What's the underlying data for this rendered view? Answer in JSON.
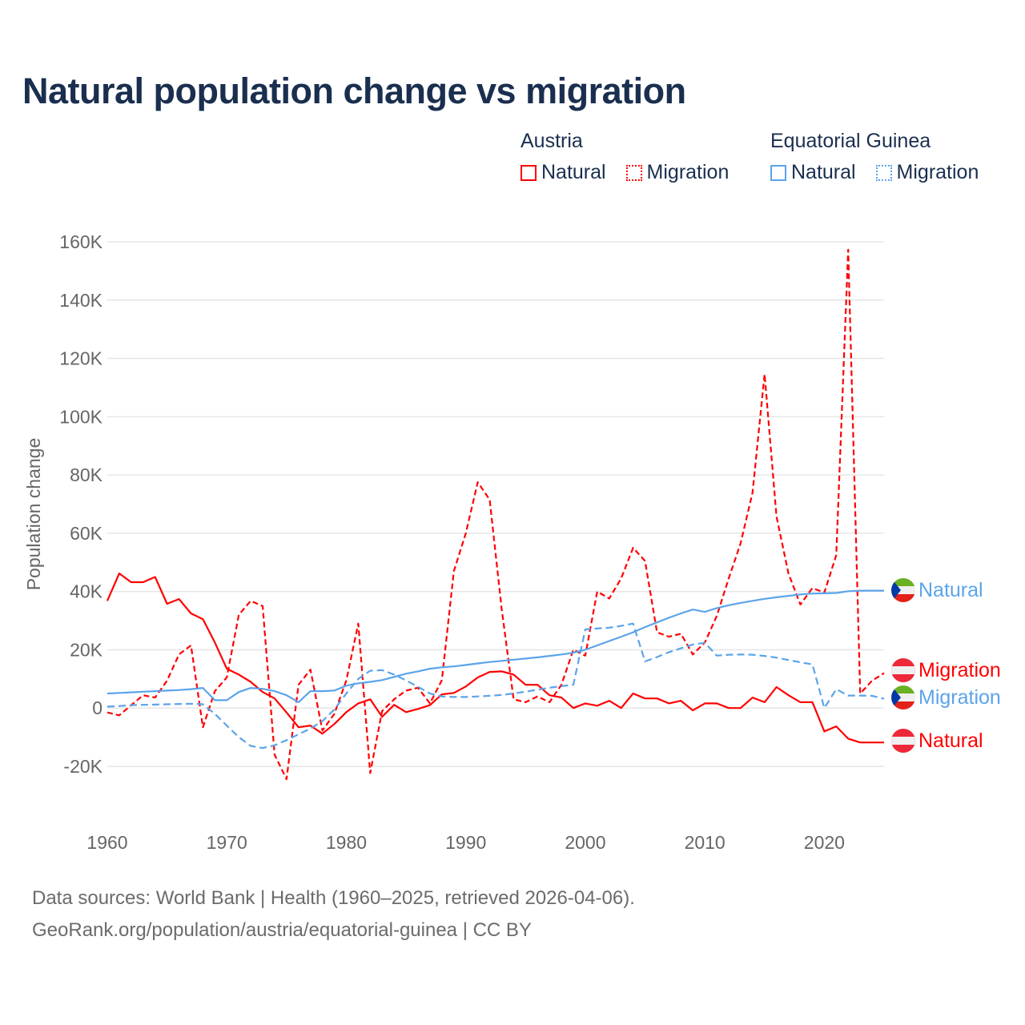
{
  "title": "Natural population change vs migration",
  "legend": {
    "groups": [
      {
        "name": "Austria",
        "items": [
          {
            "label": "Natural",
            "style": "solid"
          },
          {
            "label": "Migration",
            "style": "dotted"
          }
        ],
        "color": "#ff0000"
      },
      {
        "name": "Equatorial Guinea",
        "items": [
          {
            "label": "Natural",
            "style": "solid"
          },
          {
            "label": "Migration",
            "style": "dotted"
          }
        ],
        "color": "#5ba4ea"
      }
    ]
  },
  "footer": {
    "line1": "Data sources: World Bank | Health (1960–2025, retrieved 2026-04-06).",
    "line2": "GeoRank.org/population/austria/equatorial-guinea | CC BY"
  },
  "chart_data": {
    "type": "line",
    "title": "Natural population change vs migration",
    "xlabel": "",
    "ylabel": "Population change",
    "xlim": [
      1960,
      2025
    ],
    "ylim": [
      -20000,
      160000
    ],
    "xticks": [
      1960,
      1970,
      1980,
      1990,
      2000,
      2010,
      2020
    ],
    "yticks": [
      -20000,
      0,
      20000,
      40000,
      60000,
      80000,
      100000,
      120000,
      140000,
      160000
    ],
    "ytick_labels": [
      "-20K",
      "0",
      "20K",
      "40K",
      "60K",
      "80K",
      "100K",
      "120K",
      "140K",
      "160K"
    ],
    "grid": true,
    "legend_position": "top-right",
    "x_start": 1960,
    "series": [
      {
        "name": "Austria Natural",
        "end_label": "Natural",
        "country": "austria",
        "color": "#ff0000",
        "dash": "solid",
        "values": [
          36.8,
          46.2,
          43.2,
          43.2,
          45,
          35.8,
          37.4,
          32.5,
          30.5,
          22.5,
          13.5,
          11.5,
          9,
          5.5,
          3.3,
          -1.5,
          -6.6,
          -6,
          -8.8,
          -5.5,
          -1.4,
          1.6,
          3,
          -3,
          1.1,
          -1.4,
          -0.3,
          1,
          4.7,
          5.2,
          7.4,
          10.5,
          12.4,
          12.6,
          11.5,
          8,
          8,
          4.4,
          3.6,
          0,
          1.6,
          0.8,
          2.5,
          0,
          5,
          3.3,
          3.3,
          1.6,
          2.5,
          -0.8,
          1.6,
          1.6,
          0,
          0,
          3.6,
          2,
          7.2,
          4.4,
          2,
          2,
          -8,
          -6.3,
          -10.5,
          -11.8,
          -11.8,
          -11.8
        ]
      },
      {
        "name": "Austria Migration",
        "end_label": "Migration",
        "country": "austria",
        "color": "#ff0000",
        "dash": "dashed",
        "values": [
          -1.5,
          -2.5,
          1,
          4.4,
          3.6,
          9.4,
          18.4,
          21.5,
          -6.6,
          5.8,
          10.5,
          32,
          36.8,
          35,
          -16,
          -24.4,
          8,
          13.2,
          -7.7,
          -2,
          9.5,
          29,
          -22.3,
          -1,
          3,
          6,
          7,
          1.6,
          9.6,
          47,
          60,
          77.5,
          71.5,
          34,
          3,
          2,
          4,
          2,
          8,
          20,
          18,
          40,
          37.6,
          44.5,
          55,
          50.5,
          26,
          24.5,
          25.5,
          18.4,
          22.5,
          31.6,
          44.5,
          56.6,
          74,
          114.6,
          65.7,
          46.2,
          35.5,
          41.2,
          39.6,
          52.5,
          157.3,
          5,
          9.4,
          12
        ]
      },
      {
        "name": "Equatorial Guinea Natural",
        "end_label": "Natural",
        "country": "equatorial-guinea",
        "color": "#5ba4ea",
        "dash": "solid",
        "values": [
          5,
          5.2,
          5.4,
          5.6,
          5.8,
          6,
          6.2,
          6.5,
          6.9,
          2.7,
          2.7,
          5.5,
          6.9,
          6.6,
          5.8,
          4.4,
          2,
          5.8,
          5.8,
          6,
          7.7,
          8.5,
          9,
          9.6,
          10.7,
          11.8,
          12.6,
          13.5,
          14,
          14.3,
          14.8,
          15.3,
          15.8,
          16.2,
          16.6,
          17,
          17.4,
          17.9,
          18.4,
          19,
          20,
          21.5,
          23,
          24.5,
          26,
          27.8,
          29.4,
          31,
          32.5,
          33.8,
          33,
          34.3,
          35.3,
          36.1,
          36.8,
          37.5,
          38,
          38.5,
          39,
          39.3,
          39.4,
          39.5,
          40.1,
          40.3,
          40.3,
          40.3
        ]
      },
      {
        "name": "Equatorial Guinea Migration",
        "end_label": "Migration",
        "country": "equatorial-guinea",
        "color": "#5ba4ea",
        "dash": "dashed",
        "values": [
          0.5,
          0.7,
          1,
          1.1,
          1.2,
          1.3,
          1.4,
          1.5,
          1.3,
          -2,
          -6,
          -10,
          -13,
          -13.7,
          -12.8,
          -11,
          -9,
          -7,
          -4.5,
          -0.5,
          5,
          10,
          12.8,
          13,
          11.5,
          9.5,
          7.3,
          5,
          4,
          3.8,
          3.8,
          4,
          4.2,
          4.5,
          5,
          5.6,
          6.3,
          7,
          7.5,
          8,
          27,
          27.3,
          27.6,
          28.2,
          29,
          16,
          17.5,
          19.2,
          20.5,
          21.8,
          22.4,
          18,
          18.3,
          18.4,
          18.3,
          17.9,
          17.3,
          16.5,
          15.7,
          15,
          0,
          6.5,
          4.3,
          4.3,
          4.2,
          3.2
        ]
      }
    ],
    "value_unit": "thousands"
  }
}
